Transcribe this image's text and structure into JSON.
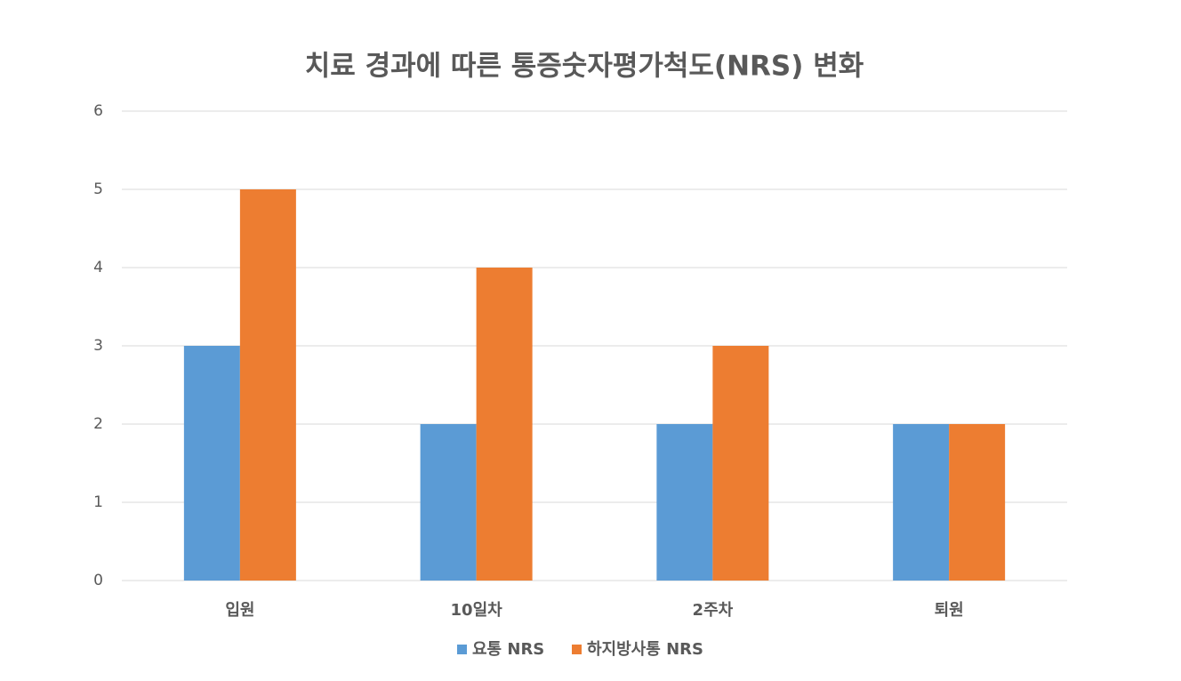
{
  "chart_data": {
    "type": "bar",
    "title": "치료 경과에 따른 통증숫자평가척도(NRS) 변화",
    "categories": [
      "입원",
      "10일차",
      "2주차",
      "퇴원"
    ],
    "series": [
      {
        "name": "요통 NRS",
        "color": "#5b9bd5",
        "values": [
          3,
          2,
          2,
          2
        ]
      },
      {
        "name": "하지방사통 NRS",
        "color": "#ed7d31",
        "values": [
          5,
          4,
          3,
          2
        ]
      }
    ],
    "ylim": [
      0,
      6
    ],
    "yticks": [
      0,
      1,
      2,
      3,
      4,
      5,
      6
    ],
    "grid": true,
    "legend": "bottom"
  }
}
